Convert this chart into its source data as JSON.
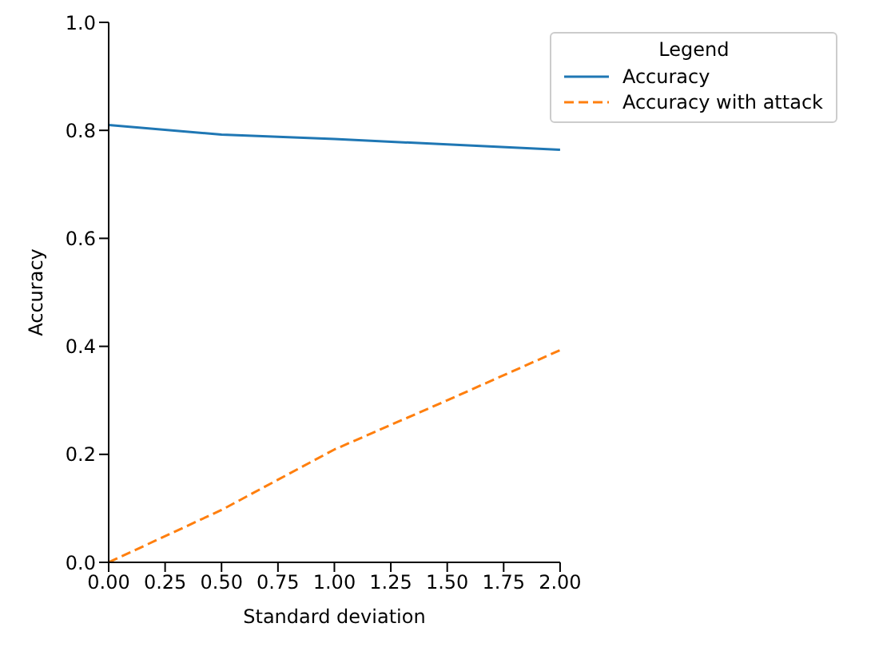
{
  "chart_data": {
    "type": "line",
    "xlabel": "Standard deviation",
    "ylabel": "Accuracy",
    "legend_title": "Legend",
    "legend": "top right",
    "grid": false,
    "marker": "none",
    "x": [
      0,
      0.5,
      1.0,
      1.5,
      2.0
    ],
    "xlim": [
      0,
      2
    ],
    "xticks": [
      {
        "value": 0,
        "label": "0.00"
      },
      {
        "value": 0.25,
        "label": "0.25"
      },
      {
        "value": 0.5,
        "label": "0.50"
      },
      {
        "value": 0.75,
        "label": "0.75"
      },
      {
        "value": 1,
        "label": "1.00"
      },
      {
        "value": 1.25,
        "label": "1.25"
      },
      {
        "value": 1.5,
        "label": "1.50"
      },
      {
        "value": 1.75,
        "label": "1.75"
      },
      {
        "value": 2,
        "label": "2.00"
      }
    ],
    "ylim": [
      0,
      1
    ],
    "yticks": [
      {
        "value": 0,
        "label": "0.0"
      },
      {
        "value": 0.2,
        "label": "0.2"
      },
      {
        "value": 0.4,
        "label": "0.4"
      },
      {
        "value": 0.6,
        "label": "0.6"
      },
      {
        "value": 0.8,
        "label": "0.8"
      },
      {
        "value": 1,
        "label": "1.0"
      }
    ],
    "series": [
      {
        "name": "Accuracy",
        "color": "#1f77b4",
        "line_style": "solid",
        "values": [
          0.81,
          0.792,
          0.784,
          0.774,
          0.764
        ]
      },
      {
        "name": "Accuracy with attack",
        "color": "#ff7f0e",
        "line_style": "dashed",
        "values": [
          0,
          0.097,
          0.209,
          0.3,
          0.393
        ]
      }
    ]
  }
}
